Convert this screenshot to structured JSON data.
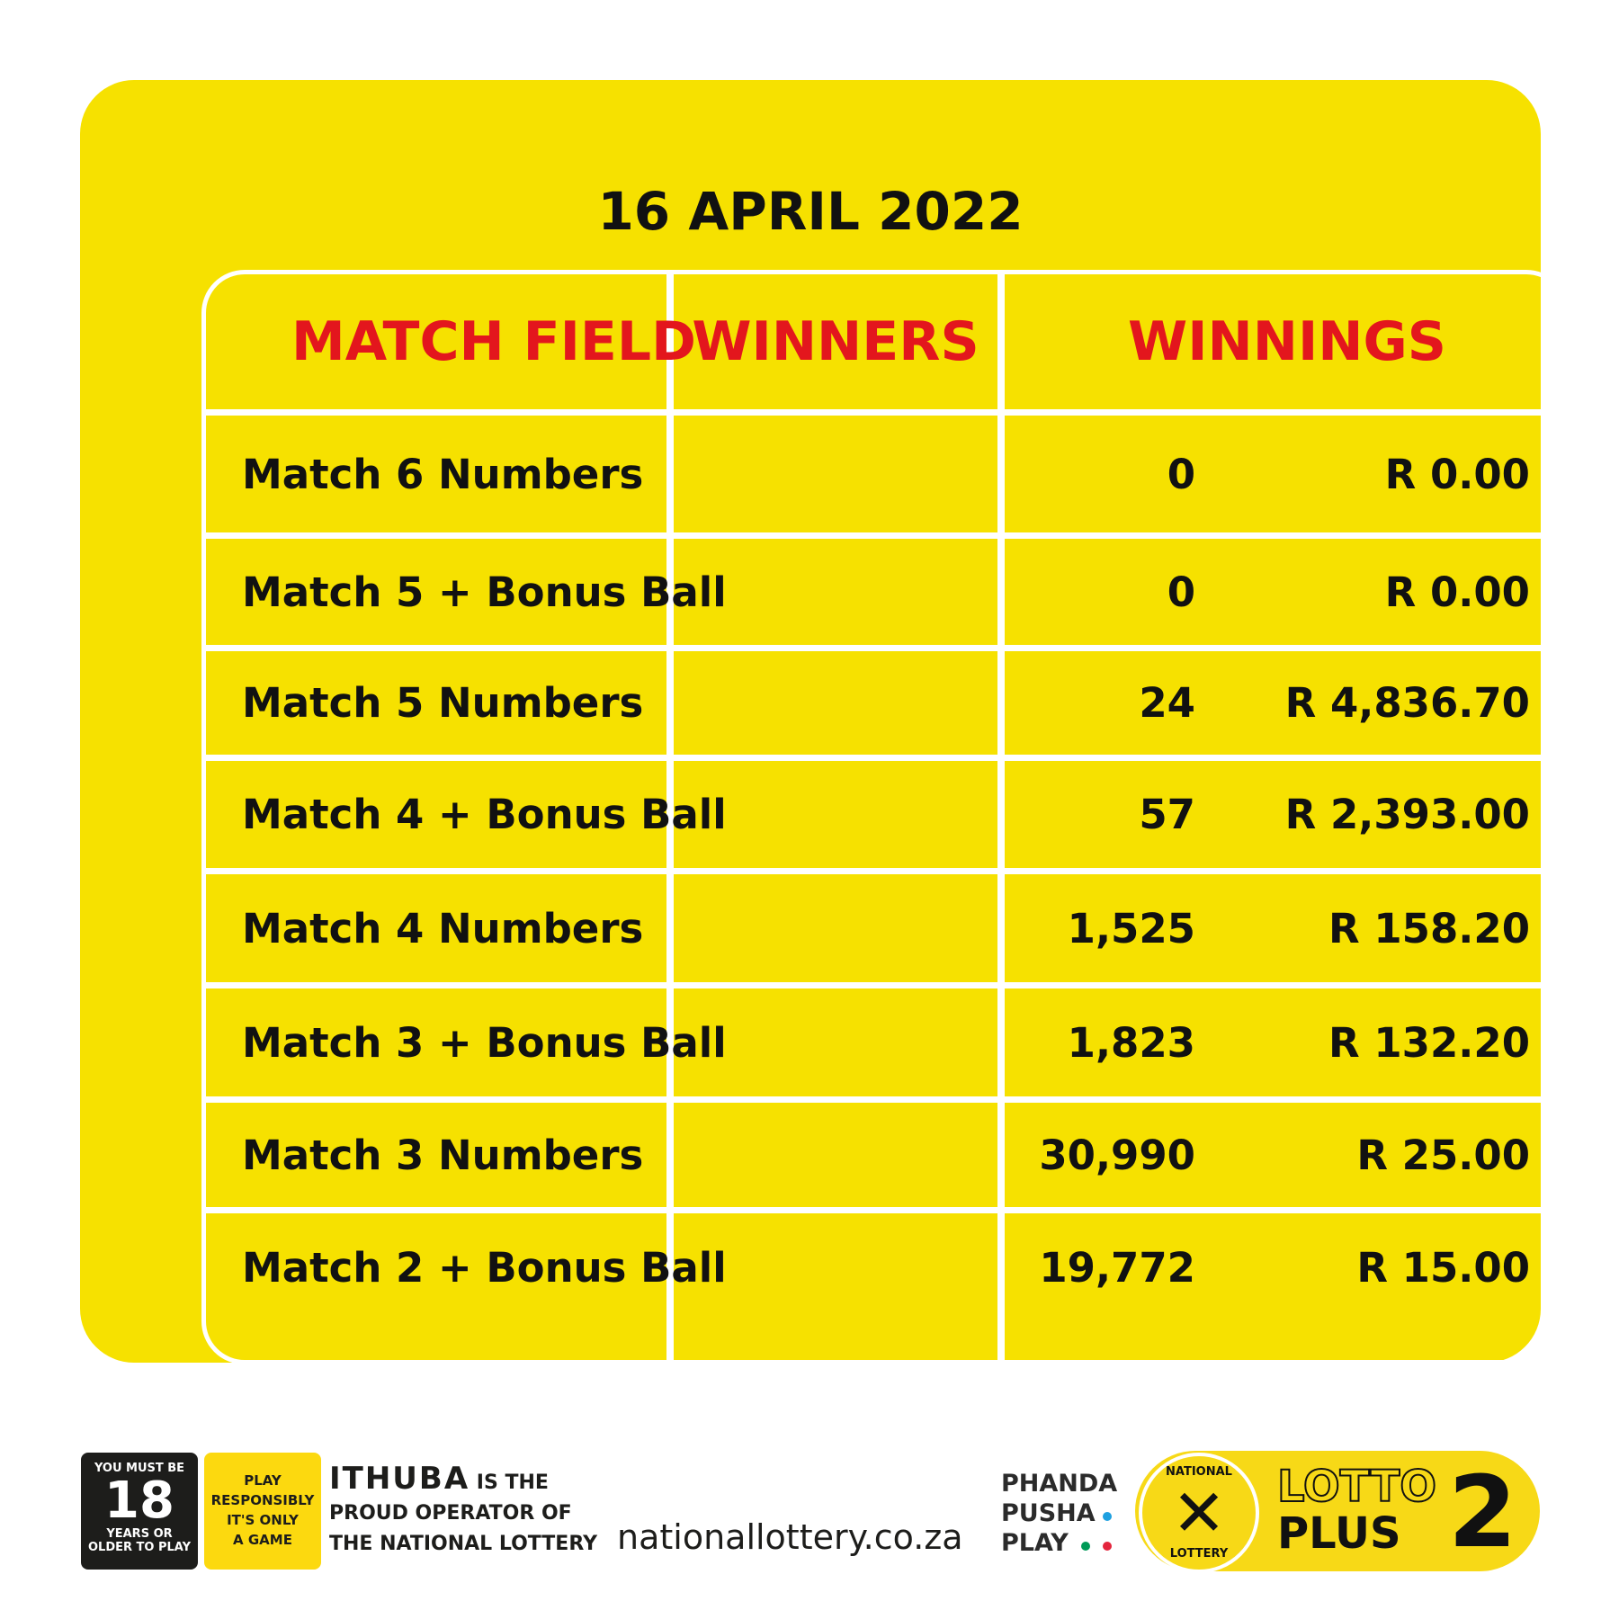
{
  "title": "16 APRIL 2022",
  "headers": [
    "MATCH FIELD",
    "WINNERS",
    "WINNINGS"
  ],
  "rows": [
    {
      "field": "Match 6 Numbers",
      "winners": "0",
      "winnings": "R 0.00"
    },
    {
      "field": "Match 5 + Bonus Ball",
      "winners": "0",
      "winnings": "R 0.00"
    },
    {
      "field": "Match 5 Numbers",
      "winners": "24",
      "winnings": "R 4,836.70"
    },
    {
      "field": "Match 4  + Bonus Ball",
      "winners": "57",
      "winnings": "R 2,393.00"
    },
    {
      "field": "Match 4 Numbers",
      "winners": "1,525",
      "winnings": "R 158.20"
    },
    {
      "field": "Match 3 + Bonus Ball",
      "winners": "1,823",
      "winnings": "R 132.20"
    },
    {
      "field": "Match 3 Numbers",
      "winners": "30,990",
      "winnings": "R 25.00"
    },
    {
      "field": "Match 2 + Bonus Ball",
      "winners": "19,772",
      "winnings": "R 15.00"
    }
  ],
  "footer": {
    "age": {
      "top": "YOU MUST BE",
      "num": "18",
      "bottom1": "YEARS OR",
      "bottom2": "OLDER TO PLAY"
    },
    "responsible": [
      "PLAY",
      "RESPONSIBLY",
      "IT'S ONLY",
      "A GAME"
    ],
    "ithuba": {
      "brand": "ITHUBA",
      "l1": " IS THE",
      "l2": "PROUD OPERATOR OF",
      "l3": "THE NATIONAL LOTTERY"
    },
    "url": "nationallottery.co.za",
    "slogan": [
      "PHANDA",
      "PUSHA",
      "PLAY"
    ],
    "logo": {
      "seal_top": "NATIONAL",
      "seal_bottom": "LOTTERY",
      "line1": "LOTTO",
      "line2": "PLUS",
      "num": "2"
    }
  },
  "colors": {
    "background": "#f6e100",
    "header_text": "#e3161d",
    "dot_blue": "#1ea0e0",
    "dot_green": "#009a57",
    "dot_red": "#e4253d"
  }
}
